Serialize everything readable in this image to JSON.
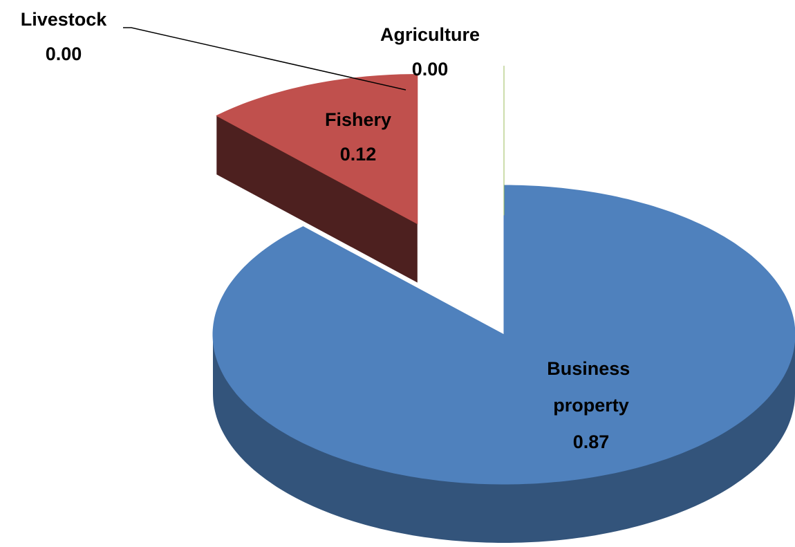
{
  "chart_data": {
    "type": "pie",
    "categories": [
      "Business property",
      "Fishery",
      "Livestock",
      "Agriculture"
    ],
    "values": [
      0.87,
      0.12,
      0.0,
      0.0
    ],
    "value_labels": [
      "0.87",
      "0.12",
      "0.00",
      "0.00"
    ],
    "colors": [
      "#4f81bd",
      "#c0504d",
      "#8064a2",
      "#9bbb59"
    ]
  }
}
